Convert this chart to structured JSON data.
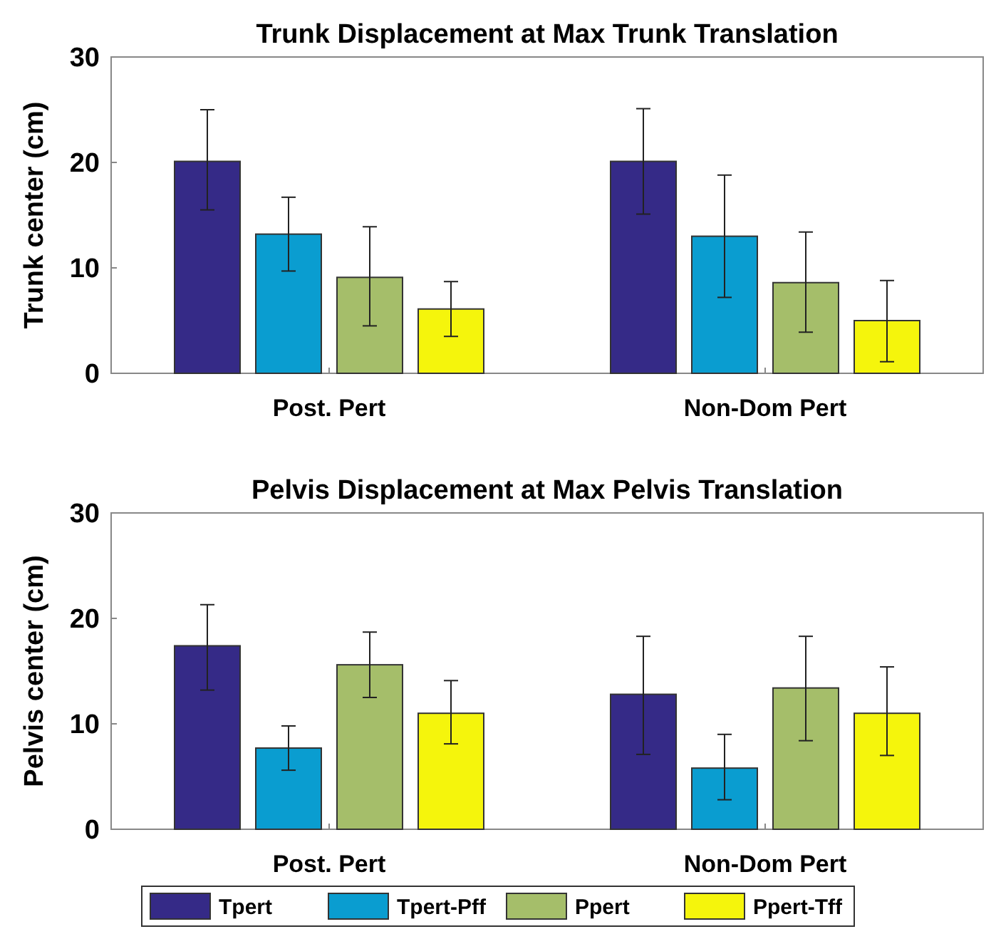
{
  "chart_data": [
    {
      "type": "bar",
      "title": "Trunk Displacement at Max Trunk Translation",
      "ylabel": "Trunk center (cm)",
      "categories": [
        "Post. Pert",
        "Non-Dom Pert"
      ],
      "ylim": [
        0,
        30
      ],
      "yticks": [
        0,
        10,
        20,
        30
      ],
      "legend": false,
      "series": [
        {
          "color": "#352a87",
          "values": [
            20.1,
            20.1
          ],
          "errors": [
            [
              15.5,
              25.0
            ],
            [
              15.1,
              25.1
            ]
          ]
        },
        {
          "color": "#0a9dd0",
          "values": [
            13.2,
            13.0
          ],
          "errors": [
            [
              9.7,
              16.7
            ],
            [
              7.2,
              18.8
            ]
          ]
        },
        {
          "color": "#a5be6a",
          "values": [
            9.1,
            8.6
          ],
          "errors": [
            [
              4.5,
              13.9
            ],
            [
              3.9,
              13.4
            ]
          ]
        },
        {
          "color": "#f5f50c",
          "values": [
            6.1,
            5.0
          ],
          "errors": [
            [
              3.5,
              8.7
            ],
            [
              1.1,
              8.8
            ]
          ]
        }
      ]
    },
    {
      "type": "bar",
      "title": "Pelvis Displacement at Max Pelvis Translation",
      "ylabel": "Pelvis center (cm)",
      "categories": [
        "Post. Pert",
        "Non-Dom Pert"
      ],
      "ylim": [
        0,
        30
      ],
      "yticks": [
        0,
        10,
        20,
        30
      ],
      "legend": "bottom",
      "series": [
        {
          "name": "Tpert",
          "color": "#352a87",
          "values": [
            17.4,
            12.8
          ],
          "errors": [
            [
              13.2,
              21.3
            ],
            [
              7.1,
              18.3
            ]
          ]
        },
        {
          "name": "Tpert-Pff",
          "color": "#0a9dd0",
          "values": [
            7.7,
            5.8
          ],
          "errors": [
            [
              5.6,
              9.8
            ],
            [
              2.8,
              9.0
            ]
          ]
        },
        {
          "name": "Ppert",
          "color": "#a5be6a",
          "values": [
            15.6,
            13.4
          ],
          "errors": [
            [
              12.5,
              18.7
            ],
            [
              8.4,
              18.3
            ]
          ]
        },
        {
          "name": "Ppert-Tff",
          "color": "#f5f50c",
          "values": [
            11.0,
            11.0
          ],
          "errors": [
            [
              8.1,
              14.1
            ],
            [
              7.0,
              15.4
            ]
          ]
        }
      ]
    }
  ]
}
